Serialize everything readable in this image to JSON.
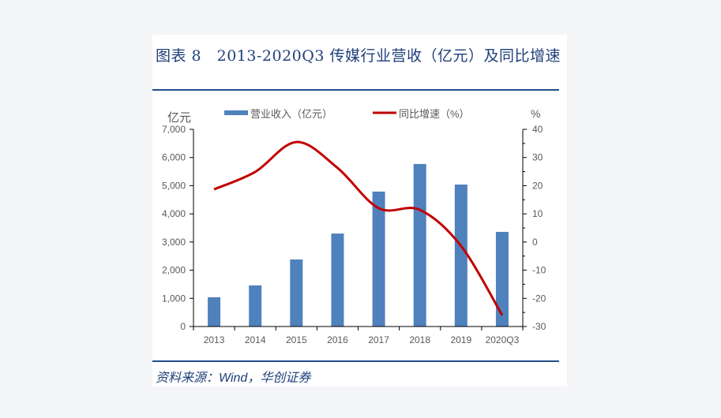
{
  "figure": {
    "title": "图表 8　2013-2020Q3 传媒行业营收（亿元）及同比增速",
    "source": "资料来源：Wind，华创证券"
  },
  "chart_data": {
    "type": "bar+line",
    "title": "2013-2020Q3 传媒行业营收（亿元）及同比增速",
    "categories": [
      "2013",
      "2014",
      "2015",
      "2016",
      "2017",
      "2018",
      "2019",
      "2020Q3"
    ],
    "ylabel_left": "亿元",
    "ylabel_right": "%",
    "ylim_left": [
      0,
      7000
    ],
    "ylim_right": [
      -30,
      40
    ],
    "yticks_left": [
      "0",
      "1,000",
      "2,000",
      "3,000",
      "4,000",
      "5,000",
      "6,000",
      "7,000"
    ],
    "yticks_right": [
      "-30",
      "-20",
      "-10",
      "0",
      "10",
      "20",
      "30",
      "40"
    ],
    "legend_placement": "top",
    "grid": false,
    "series": [
      {
        "name": "营业收入（亿元）",
        "type": "bar",
        "axis": "left",
        "color": "#4f81bd",
        "values": [
          1040,
          1460,
          2380,
          3300,
          4790,
          5770,
          5040,
          3360
        ]
      },
      {
        "name": "同比增速（%）",
        "type": "line",
        "axis": "right",
        "color": "#c00000",
        "values": [
          18.7,
          24.9,
          35.5,
          26.3,
          12.0,
          11.4,
          -1.4,
          -26.0
        ]
      }
    ]
  }
}
